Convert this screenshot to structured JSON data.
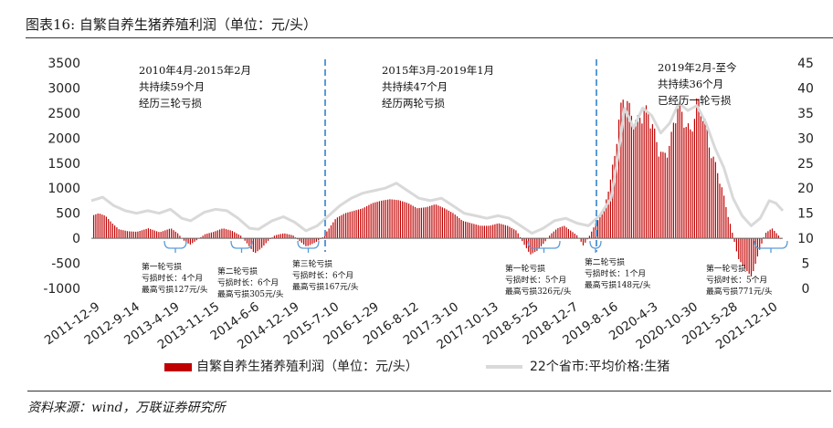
{
  "header": {
    "title": "图表16: 自繁自养生猪养殖利润（单位：元/头）"
  },
  "footer": {
    "source": "资料来源：wind，万联证券研究所"
  },
  "chart_data": {
    "type": "bar+line",
    "title": "自繁自养生猪养殖利润（单位：元/头）",
    "y_left": {
      "ticks": [
        3500,
        3000,
        2500,
        2000,
        1500,
        1000,
        500,
        0,
        -500,
        -1000
      ],
      "range": [
        -1000,
        3500
      ]
    },
    "y_right": {
      "ticks": [
        45,
        40,
        35,
        30,
        25,
        20,
        15,
        10,
        5,
        0
      ],
      "range": [
        0,
        45
      ]
    },
    "x_ticks": [
      "2011-12-9",
      "2012-9-14",
      "2013-4-19",
      "2013-11-15",
      "2014-6-6",
      "2014-12-19",
      "2015-7-10",
      "2016-1-29",
      "2016-8-12",
      "2017-3-10",
      "2017-10-13",
      "2018-5-25",
      "2018-12-7",
      "2019-8-16",
      "2020-4-3",
      "2020-10-30",
      "2021-5-28",
      "2021-12-10"
    ],
    "legend": {
      "bar": "自繁自养生猪养殖利润（单位：元/头）",
      "line": "22个省市:平均价格:生猪",
      "position": "bottom"
    },
    "colors": {
      "bar": "#c00000",
      "line": "#d9d9d9",
      "divider": "#5b9bd5"
    },
    "period_notes": [
      {
        "lines": [
          "2010年4月-2015年2月",
          "共持续59个月",
          "经历三轮亏损"
        ]
      },
      {
        "lines": [
          "2015年3月-2019年1月",
          "共持续47个月",
          "经历两轮亏损"
        ]
      },
      {
        "lines": [
          "2019年2月-至今",
          "共持续36个月",
          "已经历一轮亏损"
        ]
      }
    ],
    "loss_notes": [
      {
        "lines": [
          "第一轮亏损",
          "亏损时长：4个月",
          "最高亏损127元/头"
        ]
      },
      {
        "lines": [
          "第二轮亏损",
          "亏损时长：6个月",
          "最高亏损305元/头"
        ]
      },
      {
        "lines": [
          "第三轮亏损",
          "亏损时长：6个月",
          "最高亏损167元/头"
        ]
      },
      {
        "lines": [
          "第一轮亏损",
          "亏损时长：5个月",
          "最高亏损326元/头"
        ]
      },
      {
        "lines": [
          "第二轮亏损",
          "亏损时长：1个月",
          "最高亏损148元/头"
        ]
      },
      {
        "lines": [
          "第一轮亏损",
          "亏损时长：5个月",
          "最高亏损771元/头"
        ]
      }
    ],
    "profit_series": [
      {
        "t": 0,
        "v": 450
      },
      {
        "t": 0.3,
        "v": 500
      },
      {
        "t": 0.6,
        "v": 450
      },
      {
        "t": 0.9,
        "v": 300
      },
      {
        "t": 1.2,
        "v": 180
      },
      {
        "t": 1.6,
        "v": 140
      },
      {
        "t": 2.0,
        "v": 130
      },
      {
        "t": 2.5,
        "v": 200
      },
      {
        "t": 3.0,
        "v": 120
      },
      {
        "t": 3.5,
        "v": 200
      },
      {
        "t": 3.8,
        "v": 100
      },
      {
        "t": 4.1,
        "v": -60
      },
      {
        "t": 4.35,
        "v": -127
      },
      {
        "t": 4.7,
        "v": -20
      },
      {
        "t": 5.0,
        "v": 80
      },
      {
        "t": 5.4,
        "v": 130
      },
      {
        "t": 5.8,
        "v": 200
      },
      {
        "t": 6.2,
        "v": 150
      },
      {
        "t": 6.6,
        "v": 50
      },
      {
        "t": 6.9,
        "v": -120
      },
      {
        "t": 7.2,
        "v": -305
      },
      {
        "t": 7.5,
        "v": -200
      },
      {
        "t": 7.8,
        "v": -50
      },
      {
        "t": 8.1,
        "v": 60
      },
      {
        "t": 8.5,
        "v": 100
      },
      {
        "t": 8.9,
        "v": 60
      },
      {
        "t": 9.2,
        "v": -60
      },
      {
        "t": 9.5,
        "v": -167
      },
      {
        "t": 9.9,
        "v": -80
      },
      {
        "t": 10.2,
        "v": 10
      },
      {
        "t": 10.5,
        "v": 200
      },
      {
        "t": 10.8,
        "v": 400
      },
      {
        "t": 11.2,
        "v": 500
      },
      {
        "t": 11.6,
        "v": 550
      },
      {
        "t": 12.0,
        "v": 600
      },
      {
        "t": 12.4,
        "v": 700
      },
      {
        "t": 12.8,
        "v": 750
      },
      {
        "t": 13.2,
        "v": 780
      },
      {
        "t": 13.6,
        "v": 760
      },
      {
        "t": 14.0,
        "v": 700
      },
      {
        "t": 14.4,
        "v": 600
      },
      {
        "t": 14.8,
        "v": 620
      },
      {
        "t": 15.2,
        "v": 680
      },
      {
        "t": 15.6,
        "v": 600
      },
      {
        "t": 16.0,
        "v": 500
      },
      {
        "t": 16.4,
        "v": 350
      },
      {
        "t": 16.8,
        "v": 300
      },
      {
        "t": 17.2,
        "v": 250
      },
      {
        "t": 17.6,
        "v": 250
      },
      {
        "t": 18.0,
        "v": 300
      },
      {
        "t": 18.4,
        "v": 250
      },
      {
        "t": 18.8,
        "v": 150
      },
      {
        "t": 19.1,
        "v": -100
      },
      {
        "t": 19.4,
        "v": -326
      },
      {
        "t": 19.7,
        "v": -250
      },
      {
        "t": 20.0,
        "v": -100
      },
      {
        "t": 20.3,
        "v": 80
      },
      {
        "t": 20.6,
        "v": 200
      },
      {
        "t": 20.9,
        "v": 250
      },
      {
        "t": 21.2,
        "v": 150
      },
      {
        "t": 21.5,
        "v": 50
      },
      {
        "t": 21.75,
        "v": -148
      },
      {
        "t": 22.0,
        "v": 30
      },
      {
        "t": 22.3,
        "v": 300
      },
      {
        "t": 22.6,
        "v": 500
      },
      {
        "t": 22.9,
        "v": 1000
      },
      {
        "t": 23.2,
        "v": 2000
      },
      {
        "t": 23.5,
        "v": 3000
      },
      {
        "t": 23.8,
        "v": 2700
      },
      {
        "t": 24.1,
        "v": 2400
      },
      {
        "t": 24.4,
        "v": 2700
      },
      {
        "t": 24.7,
        "v": 2600
      },
      {
        "t": 25.0,
        "v": 2000
      },
      {
        "t": 25.3,
        "v": 1700
      },
      {
        "t": 25.6,
        "v": 2000
      },
      {
        "t": 25.9,
        "v": 2800
      },
      {
        "t": 26.2,
        "v": 2500
      },
      {
        "t": 26.5,
        "v": 2200
      },
      {
        "t": 26.8,
        "v": 2900
      },
      {
        "t": 27.1,
        "v": 2500
      },
      {
        "t": 27.4,
        "v": 1800
      },
      {
        "t": 27.7,
        "v": 1400
      },
      {
        "t": 28.0,
        "v": 800
      },
      {
        "t": 28.3,
        "v": 200
      },
      {
        "t": 28.6,
        "v": -400
      },
      {
        "t": 28.9,
        "v": -600
      },
      {
        "t": 29.2,
        "v": -771
      },
      {
        "t": 29.5,
        "v": -300
      },
      {
        "t": 29.8,
        "v": 100
      },
      {
        "t": 30.1,
        "v": 200
      },
      {
        "t": 30.4,
        "v": 50
      },
      {
        "t": 30.6,
        "v": -100
      }
    ],
    "price_series": [
      {
        "t": 0,
        "v": 17.5
      },
      {
        "t": 0.5,
        "v": 18.2
      },
      {
        "t": 1.0,
        "v": 16.5
      },
      {
        "t": 1.5,
        "v": 15.5
      },
      {
        "t": 2.0,
        "v": 15.0
      },
      {
        "t": 2.5,
        "v": 15.5
      },
      {
        "t": 3.0,
        "v": 15.0
      },
      {
        "t": 3.5,
        "v": 15.8
      },
      {
        "t": 4.0,
        "v": 14.0
      },
      {
        "t": 4.4,
        "v": 13.5
      },
      {
        "t": 5.0,
        "v": 15.2
      },
      {
        "t": 5.5,
        "v": 15.8
      },
      {
        "t": 6.0,
        "v": 15.5
      },
      {
        "t": 6.5,
        "v": 14.0
      },
      {
        "t": 7.0,
        "v": 12.0
      },
      {
        "t": 7.4,
        "v": 11.8
      },
      {
        "t": 8.0,
        "v": 13.5
      },
      {
        "t": 8.5,
        "v": 14.3
      },
      {
        "t": 9.0,
        "v": 13.2
      },
      {
        "t": 9.5,
        "v": 11.5
      },
      {
        "t": 10.0,
        "v": 12.5
      },
      {
        "t": 10.5,
        "v": 14.5
      },
      {
        "t": 11.0,
        "v": 16.5
      },
      {
        "t": 11.5,
        "v": 18.0
      },
      {
        "t": 12.0,
        "v": 19.0
      },
      {
        "t": 12.5,
        "v": 19.5
      },
      {
        "t": 13.0,
        "v": 20.0
      },
      {
        "t": 13.5,
        "v": 21.0
      },
      {
        "t": 14.0,
        "v": 19.5
      },
      {
        "t": 14.5,
        "v": 18.0
      },
      {
        "t": 15.0,
        "v": 17.5
      },
      {
        "t": 15.5,
        "v": 18.0
      },
      {
        "t": 16.0,
        "v": 16.5
      },
      {
        "t": 16.5,
        "v": 15.0
      },
      {
        "t": 17.0,
        "v": 14.5
      },
      {
        "t": 17.5,
        "v": 14.0
      },
      {
        "t": 18.0,
        "v": 14.5
      },
      {
        "t": 18.5,
        "v": 14.0
      },
      {
        "t": 19.0,
        "v": 12.5
      },
      {
        "t": 19.5,
        "v": 11.0
      },
      {
        "t": 20.0,
        "v": 12.0
      },
      {
        "t": 20.5,
        "v": 13.5
      },
      {
        "t": 21.0,
        "v": 14.0
      },
      {
        "t": 21.5,
        "v": 13.0
      },
      {
        "t": 22.0,
        "v": 12.5
      },
      {
        "t": 22.5,
        "v": 14.5
      },
      {
        "t": 23.0,
        "v": 18.0
      },
      {
        "t": 23.3,
        "v": 26.0
      },
      {
        "t": 23.6,
        "v": 36.0
      },
      {
        "t": 24.0,
        "v": 32.0
      },
      {
        "t": 24.4,
        "v": 36.0
      },
      {
        "t": 24.8,
        "v": 34.5
      },
      {
        "t": 25.2,
        "v": 31.0
      },
      {
        "t": 25.6,
        "v": 33.0
      },
      {
        "t": 26.0,
        "v": 37.0
      },
      {
        "t": 26.4,
        "v": 35.5
      },
      {
        "t": 26.8,
        "v": 36.5
      },
      {
        "t": 27.2,
        "v": 33.0
      },
      {
        "t": 27.6,
        "v": 28.0
      },
      {
        "t": 28.0,
        "v": 24.0
      },
      {
        "t": 28.4,
        "v": 18.0
      },
      {
        "t": 28.8,
        "v": 14.5
      },
      {
        "t": 29.2,
        "v": 12.5
      },
      {
        "t": 29.6,
        "v": 14.0
      },
      {
        "t": 30.0,
        "v": 17.5
      },
      {
        "t": 30.3,
        "v": 17.0
      },
      {
        "t": 30.6,
        "v": 15.5
      }
    ]
  }
}
